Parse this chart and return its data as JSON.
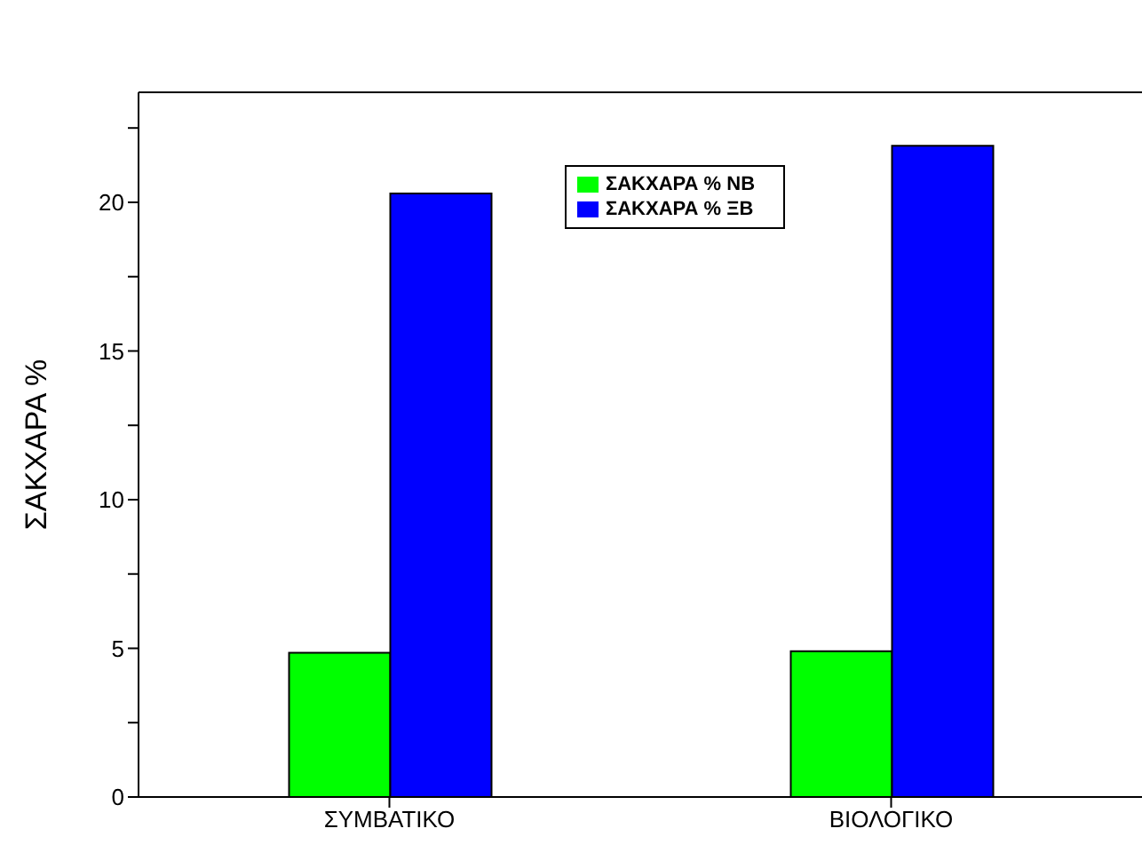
{
  "chart_data": {
    "type": "bar",
    "ylabel": "ΣΑΚΧΑΡΑ %",
    "categories": [
      "ΣΥΜΒΑΤΙΚΟ",
      "ΒΙΟΛΟΓΙΚΟ"
    ],
    "series": [
      {
        "name": "ΣΑΚΧΑΡΑ % ΝΒ",
        "color": "#00ff00",
        "values": [
          4.85,
          4.9
        ]
      },
      {
        "name": "ΣΑΚΧΑΡΑ % ΞΒ",
        "color": "#0000ff",
        "values": [
          20.3,
          21.9
        ]
      }
    ],
    "ylim": [
      0,
      23.7
    ],
    "yticks": [
      0,
      {
        "value": 2.5,
        "label": null
      },
      5,
      {
        "value": 7.5,
        "label": null
      },
      10,
      {
        "value": 12.5,
        "label": null
      },
      15,
      {
        "value": 17.5,
        "label": null
      },
      20,
      {
        "value": 22.5,
        "label": null
      }
    ],
    "legend": "top"
  }
}
